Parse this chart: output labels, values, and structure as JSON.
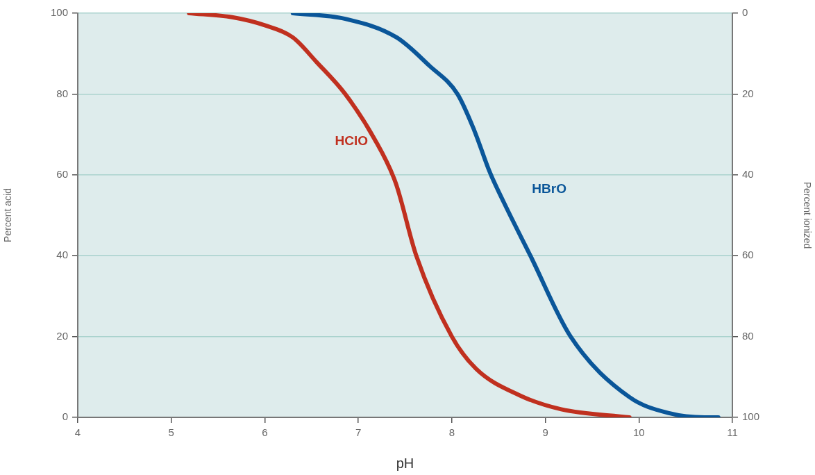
{
  "chart_data": {
    "type": "line",
    "xlabel": "pH",
    "ylabel": "Percent acid",
    "y2label": "Percent ionized",
    "xlim": [
      4,
      11
    ],
    "xticks": [
      4,
      5,
      6,
      7,
      8,
      9,
      10,
      11
    ],
    "ylim": [
      0,
      100
    ],
    "yticks": [
      0,
      20,
      40,
      60,
      80,
      100
    ],
    "y2lim": [
      100,
      0
    ],
    "y2ticks": [
      0,
      20,
      40,
      60,
      80,
      100
    ],
    "grid": "y",
    "legend": false,
    "marker": "none",
    "line_style": "solid",
    "series": [
      {
        "name": "HClO",
        "color": "#c0301f",
        "x": [
          5.19,
          5.65,
          6.0,
          6.3,
          6.55,
          6.86,
          7.17,
          7.4,
          7.62,
          8.0,
          8.26,
          8.72,
          9.17,
          9.9
        ],
        "values": [
          100,
          99,
          97,
          94,
          88,
          80,
          69,
          58,
          40,
          20,
          12,
          5.5,
          2,
          0
        ]
      },
      {
        "name": "HBrO",
        "color": "#0a5699",
        "x": [
          6.3,
          6.86,
          7.41,
          7.76,
          8.06,
          8.24,
          8.4,
          8.56,
          8.84,
          9.27,
          9.9,
          10.33,
          10.7,
          10.85
        ],
        "values": [
          100,
          98.6,
          94,
          87,
          80,
          71,
          61,
          53,
          40,
          20,
          5,
          1,
          0,
          0
        ]
      }
    ]
  }
}
